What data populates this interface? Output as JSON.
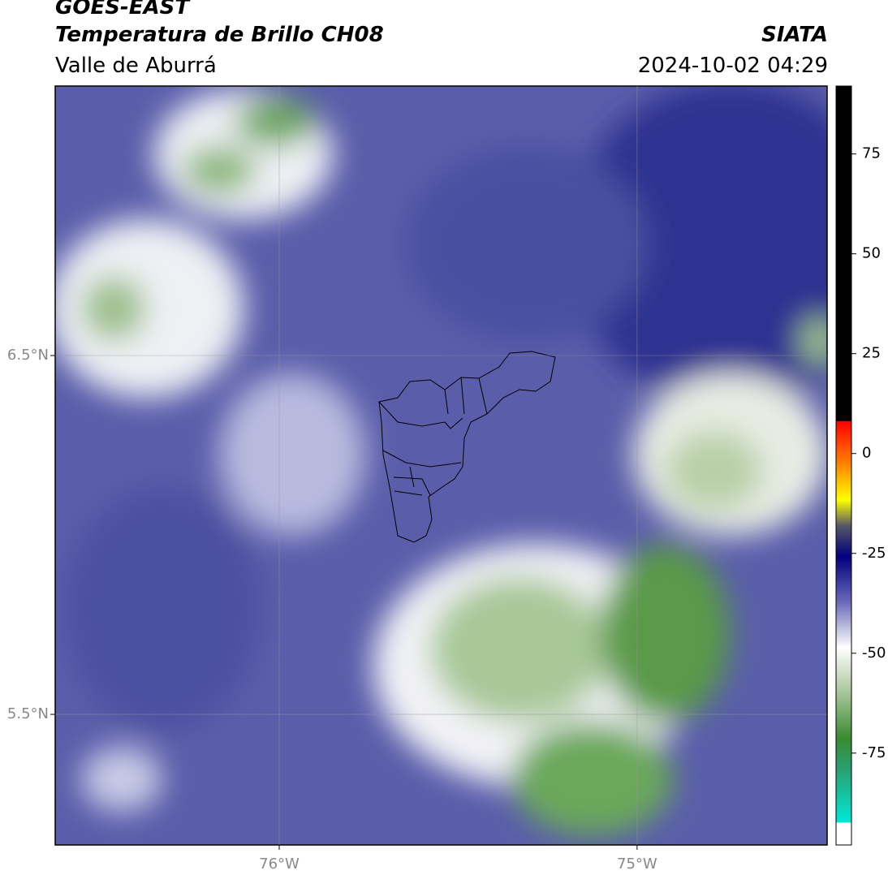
{
  "header": {
    "title": "GOES-EAST",
    "subtitle": "Temperatura de Brillo CH08",
    "region": "Valle de Aburrá",
    "source": "SIATA",
    "datetime": "2024-10-02 04:29"
  },
  "map": {
    "lon_lim": [
      -76.626,
      -74.469
    ],
    "lat_lim": [
      5.136,
      7.251
    ],
    "lon_ticks": [
      {
        "value": -76,
        "label": "76°W"
      },
      {
        "value": -75,
        "label": "75°W"
      }
    ],
    "lat_ticks": [
      {
        "value": 6.5,
        "label": "6.5°N"
      },
      {
        "value": 5.5,
        "label": "5.5°N"
      }
    ]
  },
  "colorbar": {
    "lim": [
      -98,
      92
    ],
    "ticks": [
      75,
      50,
      25,
      0,
      -25,
      -50,
      -75
    ]
  }
}
